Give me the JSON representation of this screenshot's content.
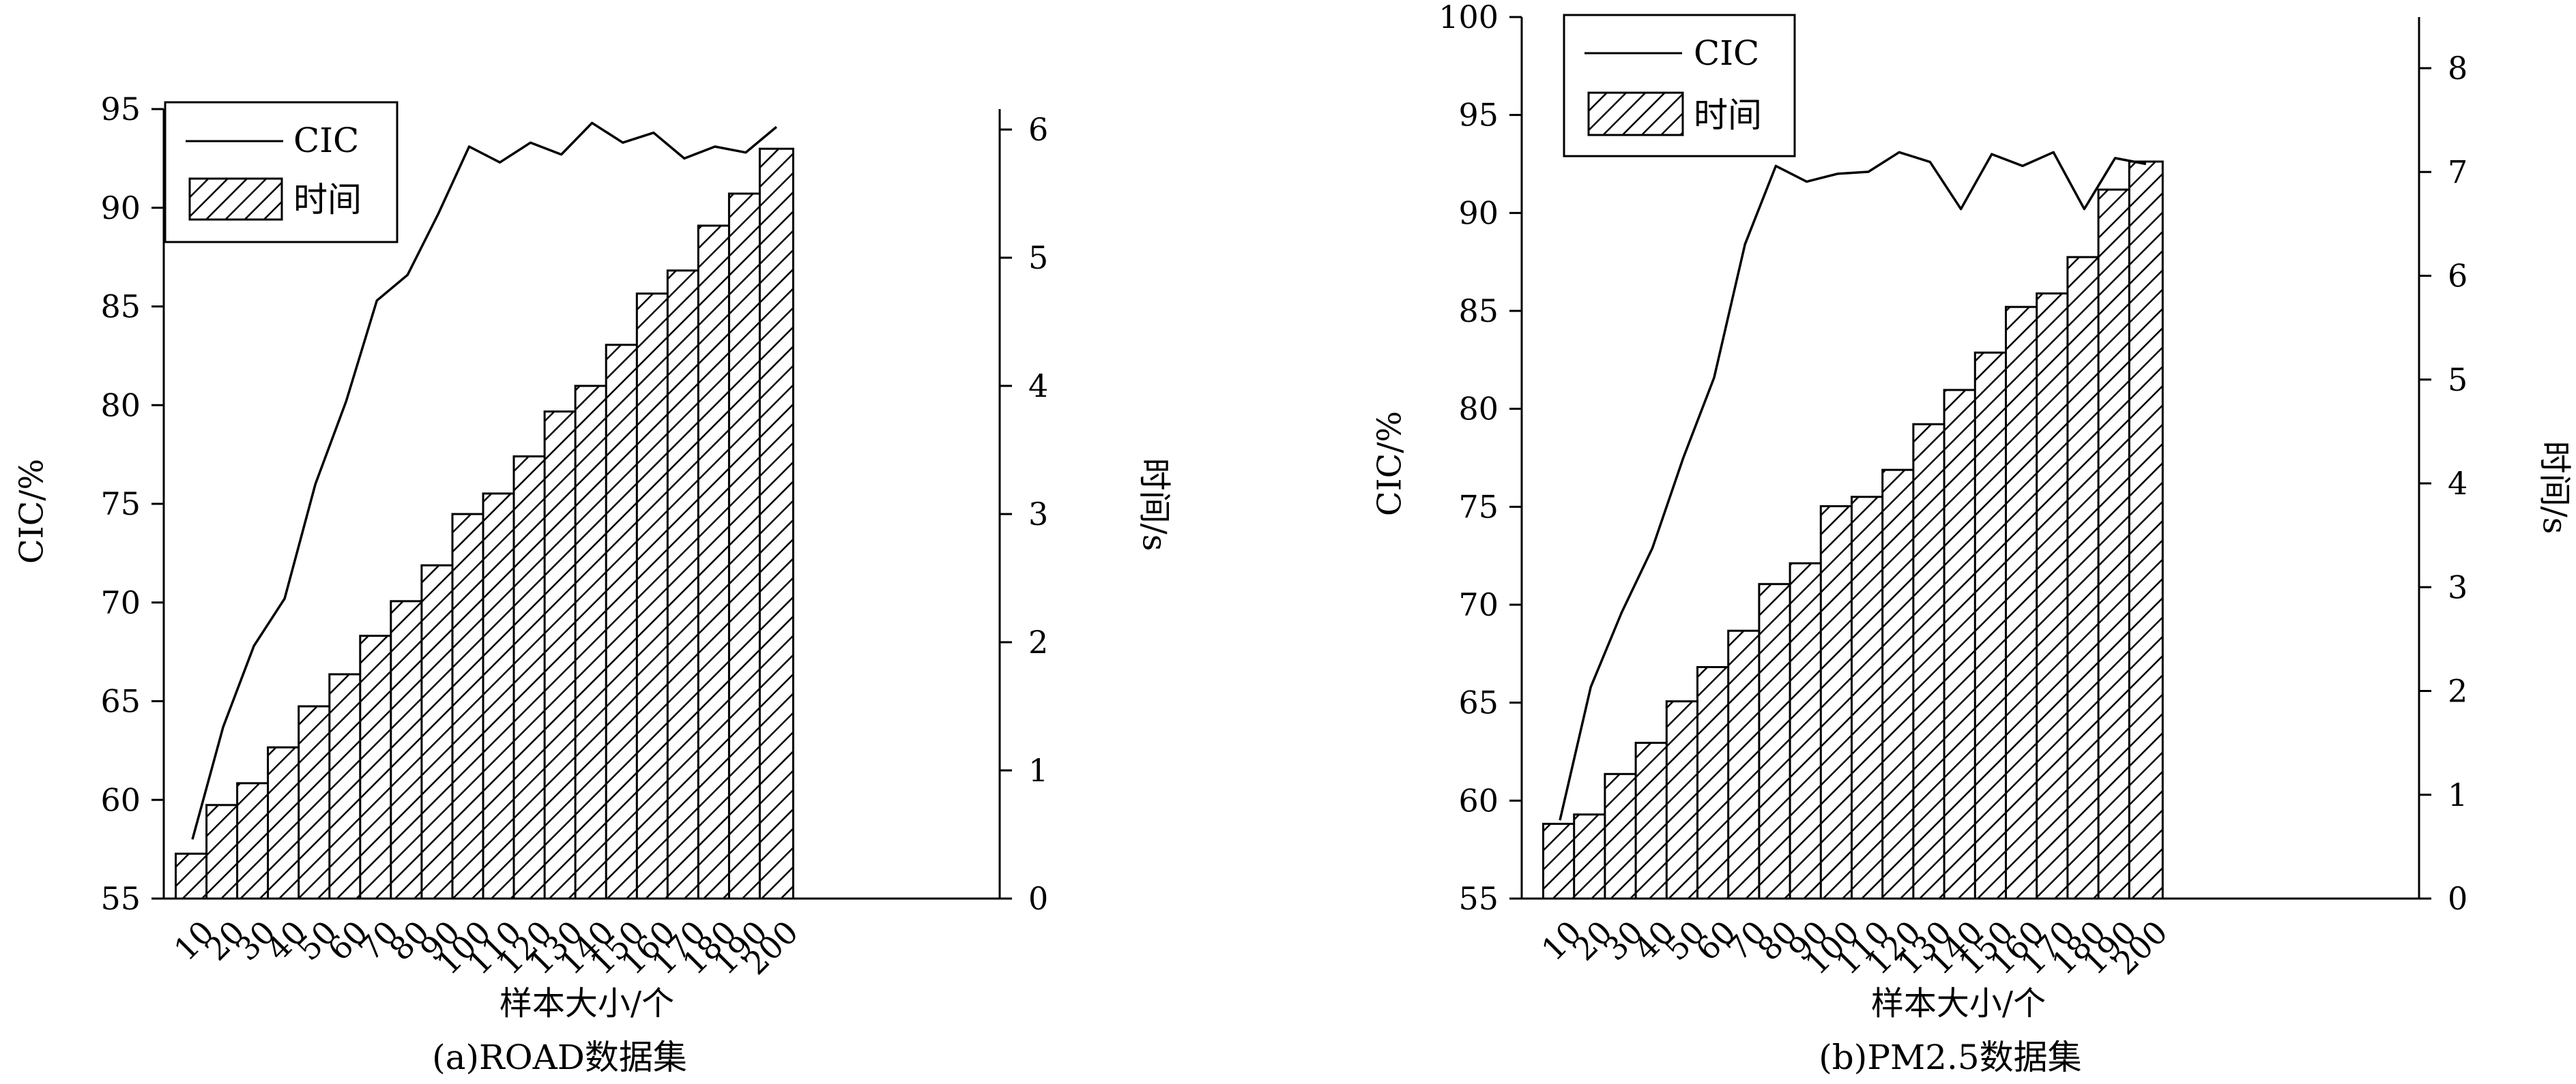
{
  "chart_data": [
    {
      "type": "bar",
      "caption": "(a)ROAD数据集",
      "xlabel": "样本大小/个",
      "ylabel_left": "CIC/%",
      "ylabel_right": "时间/s",
      "categories": [
        "10",
        "20",
        "30",
        "40",
        "50",
        "60",
        "70",
        "80",
        "90",
        "100",
        "110",
        "120",
        "130",
        "140",
        "150",
        "160",
        "170",
        "180",
        "190",
        "200"
      ],
      "ylim_left": [
        55,
        95
      ],
      "yticks_left": [
        55,
        60,
        65,
        70,
        75,
        80,
        85,
        90,
        95
      ],
      "ylim_right": [
        0,
        6
      ],
      "yticks_right": [
        0,
        1,
        2,
        3,
        4,
        5,
        6
      ],
      "legend": [
        "CIC",
        "时间"
      ],
      "legend_position": "top-left",
      "grid": false,
      "series": [
        {
          "name": "CIC",
          "axis": "left",
          "type": "line",
          "values": [
            58.0,
            63.7,
            67.8,
            70.2,
            76.0,
            80.2,
            85.3,
            86.6,
            89.7,
            93.1,
            92.3,
            93.3,
            92.7,
            94.3,
            93.3,
            93.8,
            92.5,
            93.1,
            92.8,
            94.1
          ]
        },
        {
          "name": "时间",
          "axis": "right",
          "type": "bar",
          "values": [
            0.35,
            0.73,
            0.9,
            1.18,
            1.5,
            1.75,
            2.05,
            2.32,
            2.6,
            3.0,
            3.16,
            3.45,
            3.8,
            4.0,
            4.32,
            4.72,
            4.9,
            5.25,
            5.5,
            5.85
          ]
        }
      ]
    },
    {
      "type": "bar",
      "caption": "(b)PM2.5数据集",
      "xlabel": "样本大小/个",
      "ylabel_left": "CIC/%",
      "ylabel_right": "时间/s",
      "categories": [
        "10",
        "20",
        "30",
        "40",
        "50",
        "60",
        "70",
        "80",
        "90",
        "100",
        "110",
        "120",
        "130",
        "140",
        "150",
        "160",
        "170",
        "180",
        "190",
        "200"
      ],
      "ylim_left": [
        55,
        100
      ],
      "yticks_left": [
        55,
        60,
        65,
        70,
        75,
        80,
        85,
        90,
        95,
        100
      ],
      "ylim_right": [
        0,
        8
      ],
      "yticks_right": [
        0,
        1,
        2,
        3,
        4,
        5,
        6,
        7,
        8
      ],
      "legend": [
        "CIC",
        "时间"
      ],
      "legend_position": "top-left",
      "grid": false,
      "series": [
        {
          "name": "CIC",
          "axis": "left",
          "type": "line",
          "values": [
            59.0,
            65.8,
            69.6,
            72.9,
            77.5,
            81.6,
            88.4,
            92.4,
            91.6,
            92.0,
            92.1,
            93.1,
            92.6,
            90.2,
            93.0,
            92.4,
            93.1,
            90.2,
            92.8,
            92.5
          ]
        },
        {
          "name": "时间",
          "axis": "right",
          "type": "bar",
          "values": [
            0.72,
            0.81,
            1.2,
            1.5,
            1.9,
            2.23,
            2.58,
            3.03,
            3.23,
            3.78,
            3.87,
            4.13,
            4.57,
            4.9,
            5.26,
            5.7,
            5.83,
            6.18,
            6.83,
            7.1
          ]
        }
      ]
    }
  ]
}
